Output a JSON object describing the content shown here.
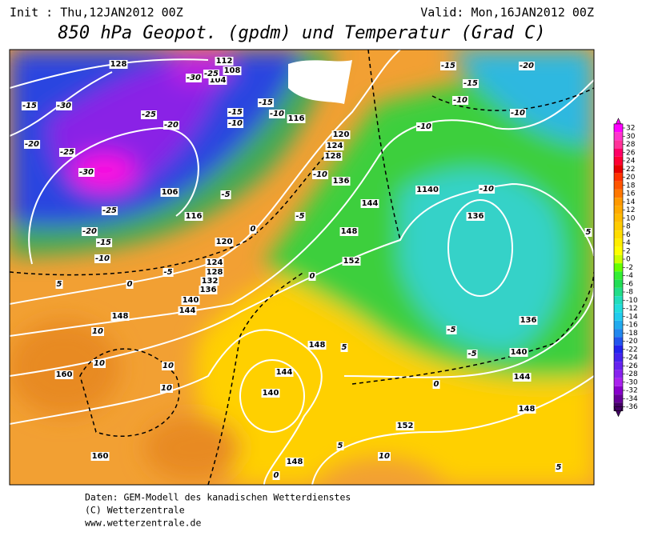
{
  "header": {
    "init": "Init : Thu,12JAN2012 00Z",
    "valid": "Valid: Mon,16JAN2012 00Z",
    "title": "850 hPa Geopot. (gpdm) und Temperatur (Grad C)"
  },
  "colorbar": {
    "ticks": [
      32,
      30,
      28,
      26,
      24,
      22,
      20,
      18,
      16,
      14,
      12,
      10,
      8,
      6,
      4,
      2,
      0,
      -2,
      -4,
      -6,
      -8,
      -10,
      -12,
      -14,
      -16,
      -18,
      -20,
      -22,
      -24,
      -26,
      -28,
      -30,
      -32,
      -34,
      -36
    ],
    "colors": [
      "#ff00ff",
      "#ff33cc",
      "#ff3399",
      "#ff0066",
      "#ff0033",
      "#e60000",
      "#ff3300",
      "#ff5500",
      "#ff7700",
      "#ff9900",
      "#ffaa00",
      "#ffbb00",
      "#ffcc00",
      "#ffdd00",
      "#ffee00",
      "#ffff00",
      "#ccff00",
      "#66ff00",
      "#33ee33",
      "#22dd55",
      "#22dd88",
      "#22ddbb",
      "#22dddd",
      "#22ccee",
      "#22aaee",
      "#2288ee",
      "#2255ee",
      "#2222ee",
      "#4422ee",
      "#6622ee",
      "#8822ee",
      "#aa22ee",
      "#8800cc",
      "#660099",
      "#440066"
    ]
  },
  "map": {
    "geopotential_labels": [
      "128",
      "112",
      "108",
      "104",
      "116",
      "120",
      "124",
      "128",
      "136",
      "106",
      "116",
      "120",
      "124",
      "128",
      "132",
      "136",
      "140",
      "144",
      "148",
      "144",
      "140",
      "148",
      "152",
      "148",
      "136",
      "140",
      "144",
      "148",
      "152",
      "160",
      "160",
      "144",
      "148",
      "1140",
      "136"
    ],
    "temperature_labels": [
      "-15",
      "-20",
      "-25",
      "-30",
      "-25",
      "-20",
      "-15",
      "-10",
      "-30",
      "-25",
      "-30",
      "-25",
      "-20",
      "-15",
      "-10",
      "-5",
      "0",
      "-5",
      "0",
      "5",
      "10",
      "10",
      "10",
      "10",
      "5",
      "0",
      "5",
      "10",
      "-15",
      "-20",
      "-15",
      "-10",
      "-10",
      "-10",
      "-5",
      "0",
      "5",
      "-10",
      "-10",
      "-5",
      "0",
      "5",
      "-15",
      "-10",
      "-5"
    ]
  },
  "footer": {
    "line1": "Daten: GEM-Modell des kanadischen Wetterdienstes",
    "line2": "(C) Wetterzentrale",
    "line3": "www.wetterzentrale.de"
  }
}
